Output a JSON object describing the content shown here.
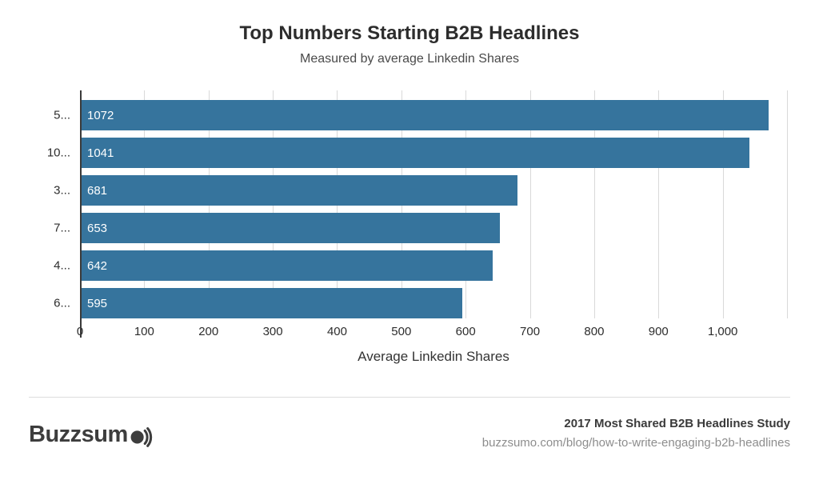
{
  "chart": {
    "title": "Top Numbers Starting B2B Headlines",
    "subtitle": "Measured by average Linkedin Shares",
    "xlabel": "Average Linkedin Shares"
  },
  "chart_data": {
    "type": "bar",
    "orientation": "horizontal",
    "title": "Top Numbers Starting B2B Headlines",
    "subtitle": "Measured by average Linkedin Shares",
    "xlabel": "Average Linkedin Shares",
    "ylabel": "",
    "categories": [
      "5...",
      "10...",
      "3...",
      "7...",
      "4...",
      "6..."
    ],
    "values": [
      1072,
      1041,
      681,
      653,
      642,
      595
    ],
    "xlim": [
      0,
      1100
    ],
    "x_ticks": [
      0,
      100,
      200,
      300,
      400,
      500,
      600,
      700,
      800,
      900,
      1000
    ],
    "x_tick_labels": [
      "0",
      "100",
      "200",
      "300",
      "400",
      "500",
      "600",
      "700",
      "800",
      "900",
      "1,000"
    ],
    "grid": true,
    "legend": "none",
    "bar_color": "#36749d",
    "value_label_color": "#ffffff"
  },
  "footer": {
    "logo_text": "Buzzsum",
    "logo_name": "Buzzsumo",
    "study": "2017 Most Shared B2B Headlines Study",
    "url": "buzzsumo.com/blog/how-to-write-engaging-b2b-headlines"
  }
}
